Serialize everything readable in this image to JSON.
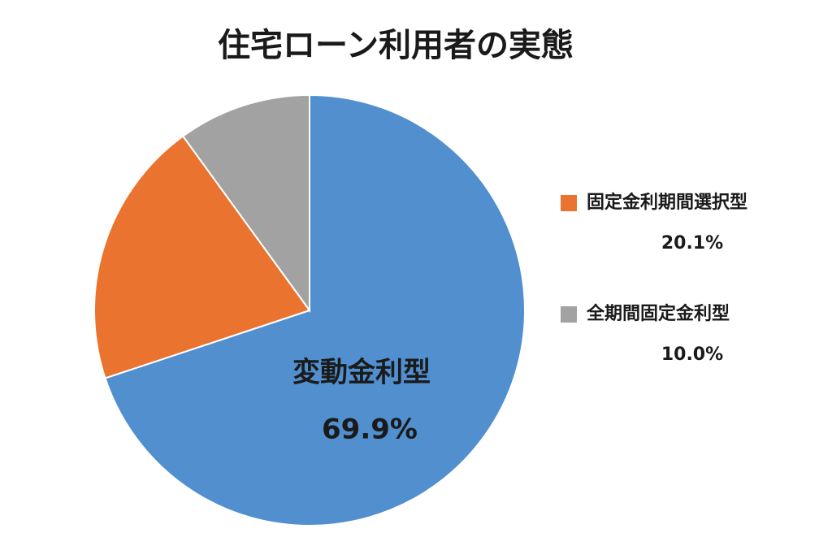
{
  "chart_data": {
    "type": "pie",
    "title": "住宅ローン利用者の実態",
    "categories": [
      "変動金利型",
      "固定金利期間選択型",
      "全期間固定金利型"
    ],
    "values": [
      69.9,
      20.1,
      10.0
    ],
    "value_labels": [
      "69.9%",
      "20.1%",
      "10.0%"
    ],
    "colors": [
      "#518fcf",
      "#ea742f",
      "#a2a2a2"
    ]
  }
}
